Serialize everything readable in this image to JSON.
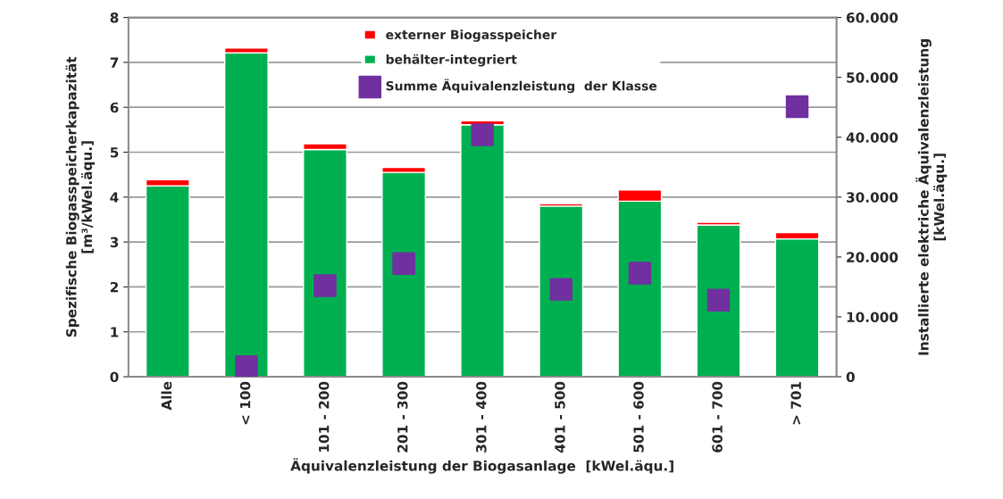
{
  "chart_data": {
    "type": "bar",
    "stacked": true,
    "categories": [
      "Alle",
      "< 100",
      "101 - 200",
      "201 - 300",
      "301 - 400",
      "401 - 500",
      "501 - 600",
      "601 - 700",
      "> 701"
    ],
    "xlabel": "Äquivalenzleistung der Biogasanlage  [kWel.äqu.]",
    "ylabel": "Spezifische Biogasspeicherkapazität\n[m³/kWel.äqu.]",
    "y2label": "Installierte elektriche Äquivalenzleistung\n[kWel.äqu.]",
    "ylim": [
      0,
      8
    ],
    "yticks": [
      0,
      1,
      2,
      3,
      4,
      5,
      6,
      7,
      8
    ],
    "y2lim": [
      0,
      60000
    ],
    "y2ticks": [
      0,
      {
        "value": 10000,
        "label": "10.000"
      },
      {
        "value": 20000,
        "label": "20.000"
      },
      {
        "value": 30000,
        "label": "30.000"
      },
      {
        "value": 40000,
        "label": "40.000"
      },
      {
        "value": 50000,
        "label": "50.000"
      },
      {
        "value": 60000,
        "label": "60.000"
      }
    ],
    "grid": "y",
    "legend": "top",
    "series": [
      {
        "name": "behälter-integriert",
        "color": "#00b050",
        "values": [
          4.25,
          7.21,
          5.06,
          4.55,
          5.61,
          3.8,
          3.91,
          3.38,
          3.07
        ]
      },
      {
        "name": "externer Biogasspeicher",
        "color": "#ff0000",
        "values": [
          0.14,
          0.11,
          0.13,
          0.11,
          0.09,
          0.05,
          0.25,
          0.06,
          0.14
        ]
      },
      {
        "name": "Summe Äquivalenzleistung  der Klasse",
        "color": "#7030a0",
        "type": "scatter",
        "axis": "y2",
        "marker": "square",
        "values": [
          null,
          1700,
          15200,
          18900,
          40400,
          14600,
          17300,
          12800,
          45100
        ]
      }
    ]
  }
}
